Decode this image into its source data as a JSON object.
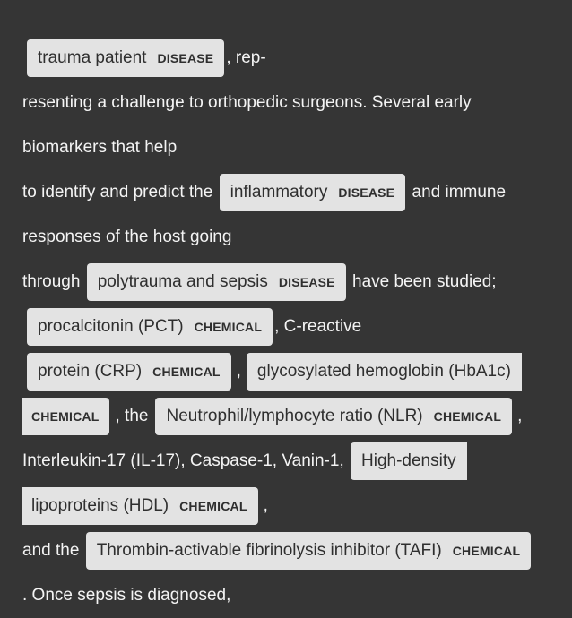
{
  "document": {
    "line_top": "",
    "line1": {
      "entity1": {
        "text": "trauma patient",
        "label": "DISEASE"
      },
      "after": ", rep-"
    },
    "line2": "resenting a challenge to orthopedic surgeons. Several early",
    "line3": "biomarkers that help",
    "line4": {
      "before": "to identify and predict the",
      "entity1": {
        "text": "inflammatory",
        "label": "DISEASE"
      },
      "after": "and immune"
    },
    "line5": "responses of the host going",
    "line6": {
      "before": "through",
      "entity1": {
        "text": "polytrauma and sepsis",
        "label": "DISEASE"
      },
      "after": "have been studied;"
    },
    "line7": {
      "entity1": {
        "text": "procalcitonin (PCT)",
        "label": "CHEMICAL"
      },
      "after": ", C-reactive"
    },
    "line8": {
      "entity1": {
        "text": "protein (CRP)",
        "label": "CHEMICAL"
      },
      "between": ",",
      "entity2": {
        "text": "glycosylated hemoglobin (HbA1c)"
      }
    },
    "line9": {
      "entity1": {
        "label": "CHEMICAL"
      },
      "between": ", the",
      "entity2": {
        "text": "Neutrophil/lymphocyte ratio (NLR)",
        "label": "CHEMICAL"
      },
      "after": ","
    },
    "line10": {
      "before": "Interleukin-17 (IL-17), Caspase-1, Vanin-1,",
      "entity1": {
        "text": "High-density"
      }
    },
    "line11": {
      "entity1": {
        "text": "lipoproteins (HDL)",
        "label": "CHEMICAL"
      },
      "after": ","
    },
    "line12": {
      "before": "and the",
      "entity1": {
        "text": "Thrombin-activable fibrinolysis inhibitor (TAFI)",
        "label": "CHEMICAL"
      }
    },
    "line13": ". Once sepsis is diagnosed,"
  }
}
